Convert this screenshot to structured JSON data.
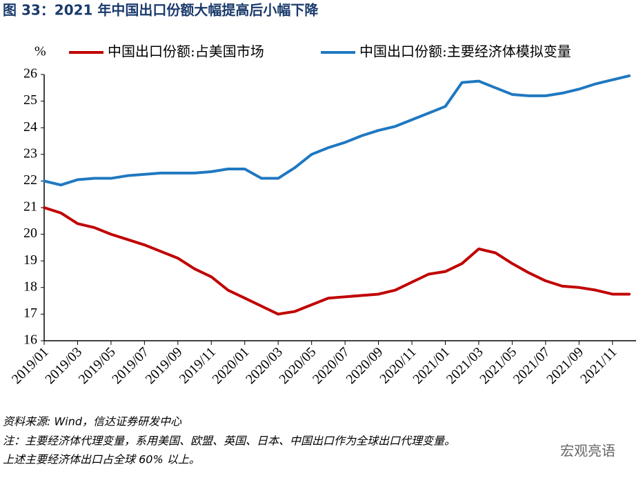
{
  "chart_data": {
    "type": "line",
    "title": "图 33：2021 年中国出口份额大幅提高后小幅下降",
    "y_unit": "%",
    "categories": [
      "2019/01",
      null,
      "2019/03",
      null,
      "2019/05",
      null,
      "2019/07",
      null,
      "2019/09",
      null,
      "2019/11",
      null,
      "2020/01",
      null,
      "2020/03",
      null,
      "2020/05",
      null,
      "2020/07",
      null,
      "2020/09",
      null,
      "2020/11",
      null,
      "2021/01",
      null,
      "2021/03",
      null,
      "2021/05",
      null,
      "2021/07",
      null,
      "2021/09",
      null,
      "2021/11",
      null
    ],
    "series": [
      {
        "name": "中国出口份额:占美国市场",
        "color": "#c00000",
        "values": [
          21.0,
          20.8,
          20.4,
          20.25,
          20.0,
          19.8,
          19.6,
          19.35,
          19.1,
          18.7,
          18.4,
          17.9,
          17.6,
          17.3,
          17.0,
          17.1,
          17.35,
          17.6,
          17.65,
          17.7,
          17.75,
          17.9,
          18.2,
          18.5,
          18.6,
          18.9,
          19.45,
          19.3,
          18.9,
          18.55,
          18.25,
          18.05,
          18.0,
          17.9,
          17.75,
          17.75
        ]
      },
      {
        "name": "中国出口份额:主要经济体模拟变量",
        "color": "#1f78c1",
        "values": [
          22.0,
          21.85,
          22.05,
          22.1,
          22.1,
          22.2,
          22.25,
          22.3,
          22.3,
          22.3,
          22.35,
          22.45,
          22.45,
          22.1,
          22.1,
          22.5,
          23.0,
          23.25,
          23.45,
          23.7,
          23.9,
          24.05,
          24.3,
          24.55,
          24.8,
          25.7,
          25.75,
          25.5,
          25.25,
          25.2,
          25.2,
          25.3,
          25.45,
          25.65,
          25.8,
          25.95
        ]
      }
    ],
    "ylim": [
      16,
      26
    ],
    "yticks": [
      16,
      17,
      18,
      19,
      20,
      21,
      22,
      23,
      24,
      25,
      26
    ],
    "legend": "top",
    "source": "资料来源: Wind，信达证券研发中心",
    "notes": [
      "注：主要经济体代理变量，系用美国、欧盟、英国、日本、中国出口作为全球出口代理变量。",
      "上述主要经济体出口占全球 60% 以上。"
    ],
    "watermark": "宏观亮语"
  }
}
